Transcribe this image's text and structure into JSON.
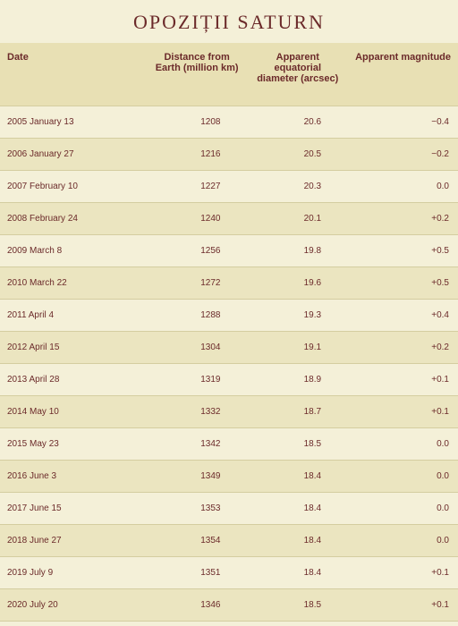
{
  "title": "OPOZIȚII SATURN",
  "table": {
    "columns": [
      "Date",
      "Distance from Earth (million km)",
      "Apparent equatorial diameter (arcsec)",
      "Apparent magnitude"
    ],
    "rows": [
      {
        "date": "2005 January 13",
        "distance": "1208",
        "diameter": "20.6",
        "magnitude": "−0.4"
      },
      {
        "date": "2006 January 27",
        "distance": "1216",
        "diameter": "20.5",
        "magnitude": "−0.2"
      },
      {
        "date": "2007 February 10",
        "distance": "1227",
        "diameter": "20.3",
        "magnitude": "0.0"
      },
      {
        "date": "2008 February 24",
        "distance": "1240",
        "diameter": "20.1",
        "magnitude": "+0.2"
      },
      {
        "date": "2009 March 8",
        "distance": "1256",
        "diameter": "19.8",
        "magnitude": "+0.5"
      },
      {
        "date": "2010 March 22",
        "distance": "1272",
        "diameter": "19.6",
        "magnitude": "+0.5"
      },
      {
        "date": "2011 April 4",
        "distance": "1288",
        "diameter": "19.3",
        "magnitude": "+0.4"
      },
      {
        "date": "2012 April 15",
        "distance": "1304",
        "diameter": "19.1",
        "magnitude": "+0.2"
      },
      {
        "date": "2013 April 28",
        "distance": "1319",
        "diameter": "18.9",
        "magnitude": "+0.1"
      },
      {
        "date": "2014 May 10",
        "distance": "1332",
        "diameter": "18.7",
        "magnitude": "+0.1"
      },
      {
        "date": "2015 May 23",
        "distance": "1342",
        "diameter": "18.5",
        "magnitude": "0.0"
      },
      {
        "date": "2016 June 3",
        "distance": "1349",
        "diameter": "18.4",
        "magnitude": "0.0"
      },
      {
        "date": "2017 June 15",
        "distance": "1353",
        "diameter": "18.4",
        "magnitude": "0.0"
      },
      {
        "date": "2018 June 27",
        "distance": "1354",
        "diameter": "18.4",
        "magnitude": "0.0"
      },
      {
        "date": "2019 July 9",
        "distance": "1351",
        "diameter": "18.4",
        "magnitude": "+0.1"
      },
      {
        "date": "2020 July 20",
        "distance": "1346",
        "diameter": "18.5",
        "magnitude": "+0.1"
      }
    ]
  },
  "styles": {
    "background_color": "#f4f0d8",
    "row_alt_color": "#ebe5c0",
    "header_bg": "#e8e0b4",
    "text_color": "#6b2a2a",
    "border_color": "#d4cda0",
    "title_fontsize": 22,
    "header_fontsize": 11,
    "cell_fontsize": 10
  }
}
